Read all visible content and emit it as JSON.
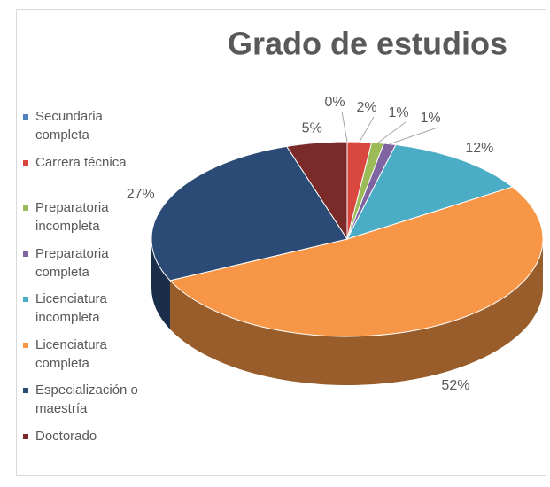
{
  "chart_data": {
    "type": "pie",
    "title": "Grado de estudios",
    "categories": [
      "Secundaria completa",
      "Carrera técnica",
      "Preparatoria incompleta",
      "Preparatoria completa",
      "Licenciatura incompleta",
      "Licenciatura completa",
      "Especialización o maestría",
      "Doctorado"
    ],
    "values": [
      0,
      2,
      1,
      1,
      12,
      52,
      27,
      5
    ],
    "value_labels": [
      "0%",
      "2%",
      "1%",
      "1%",
      "12%",
      "52%",
      "27%",
      "5%"
    ],
    "colors": [
      "#4f81bd",
      "#d9473f",
      "#9bbb59",
      "#8064a2",
      "#4bacc6",
      "#f79646",
      "#2b4a75",
      "#7a2a28"
    ],
    "legend": "left"
  }
}
